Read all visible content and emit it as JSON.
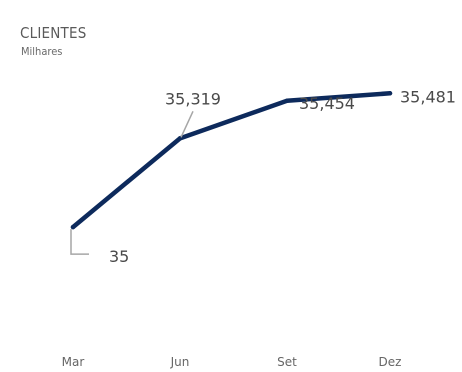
{
  "chart_data": {
    "type": "line",
    "title": "CLIENTES",
    "subtitle": "Milhares",
    "categories": [
      "Mar",
      "Jun",
      "Set",
      "Dez"
    ],
    "series": [
      {
        "values": [
          35.0,
          35.319,
          35.454,
          35.481
        ],
        "data_labels": [
          "35",
          "35,319",
          "35,454",
          "35,481"
        ]
      }
    ],
    "grid": false,
    "legend": "none",
    "colors": {
      "line": "#0d2a5c",
      "text": "#4a4a4a",
      "axis_text": "#666666",
      "leader": "#a6a6a6"
    }
  }
}
